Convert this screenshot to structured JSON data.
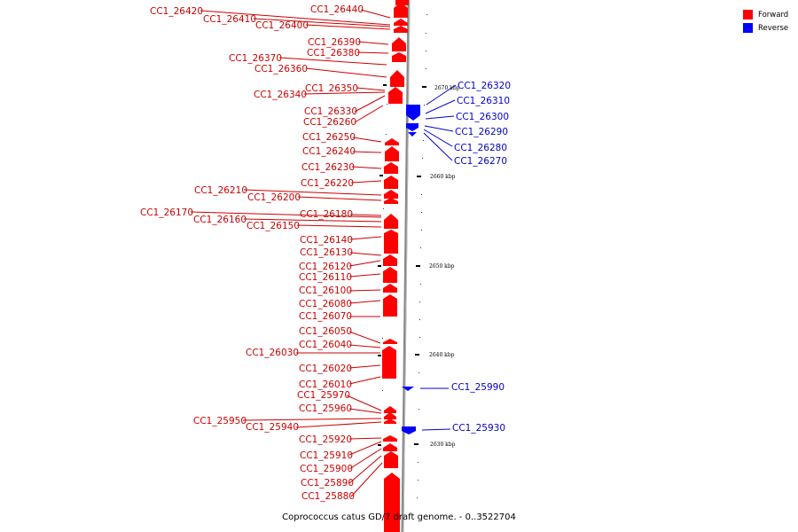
{
  "legend": {
    "forward_label": "Forward",
    "reverse_label": "Reverse",
    "forward_color": "#ff0000",
    "reverse_color": "#0000ff"
  },
  "caption": "Coprococcus catus GD/7 draft genome. - 0..3522704",
  "scale_ticks": [
    "2670 kbp",
    "2660 kbp",
    "2650 kbp",
    "2640 kbp",
    "2630 kbp"
  ],
  "forward_genes": [
    "CC1_26440",
    "CC1_26420",
    "CC1_26410",
    "CC1_26400",
    "CC1_26390",
    "CC1_26380",
    "CC1_26370",
    "CC1_26360",
    "CC1_26350",
    "CC1_26340",
    "CC1_26330",
    "CC1_26260",
    "CC1_26250",
    "CC1_26240",
    "CC1_26230",
    "CC1_26220",
    "CC1_26210",
    "CC1_26200",
    "CC1_26170",
    "CC1_26180",
    "CC1_26160",
    "CC1_26150",
    "CC1_26140",
    "CC1_26130",
    "CC1_26120",
    "CC1_26110",
    "CC1_26100",
    "CC1_26080",
    "CC1_26070",
    "CC1_26050",
    "CC1_26040",
    "CC1_26030",
    "CC1_26020",
    "CC1_26010",
    "CC1_25970",
    "CC1_25960",
    "CC1_25950",
    "CC1_25940",
    "CC1_25920",
    "CC1_25910",
    "CC1_25900",
    "CC1_25890",
    "CC1_25880"
  ],
  "reverse_genes": [
    "CC1_26320",
    "CC1_26310",
    "CC1_26300",
    "CC1_26290",
    "CC1_26280",
    "CC1_26270",
    "CC1_25990",
    "CC1_25930"
  ]
}
